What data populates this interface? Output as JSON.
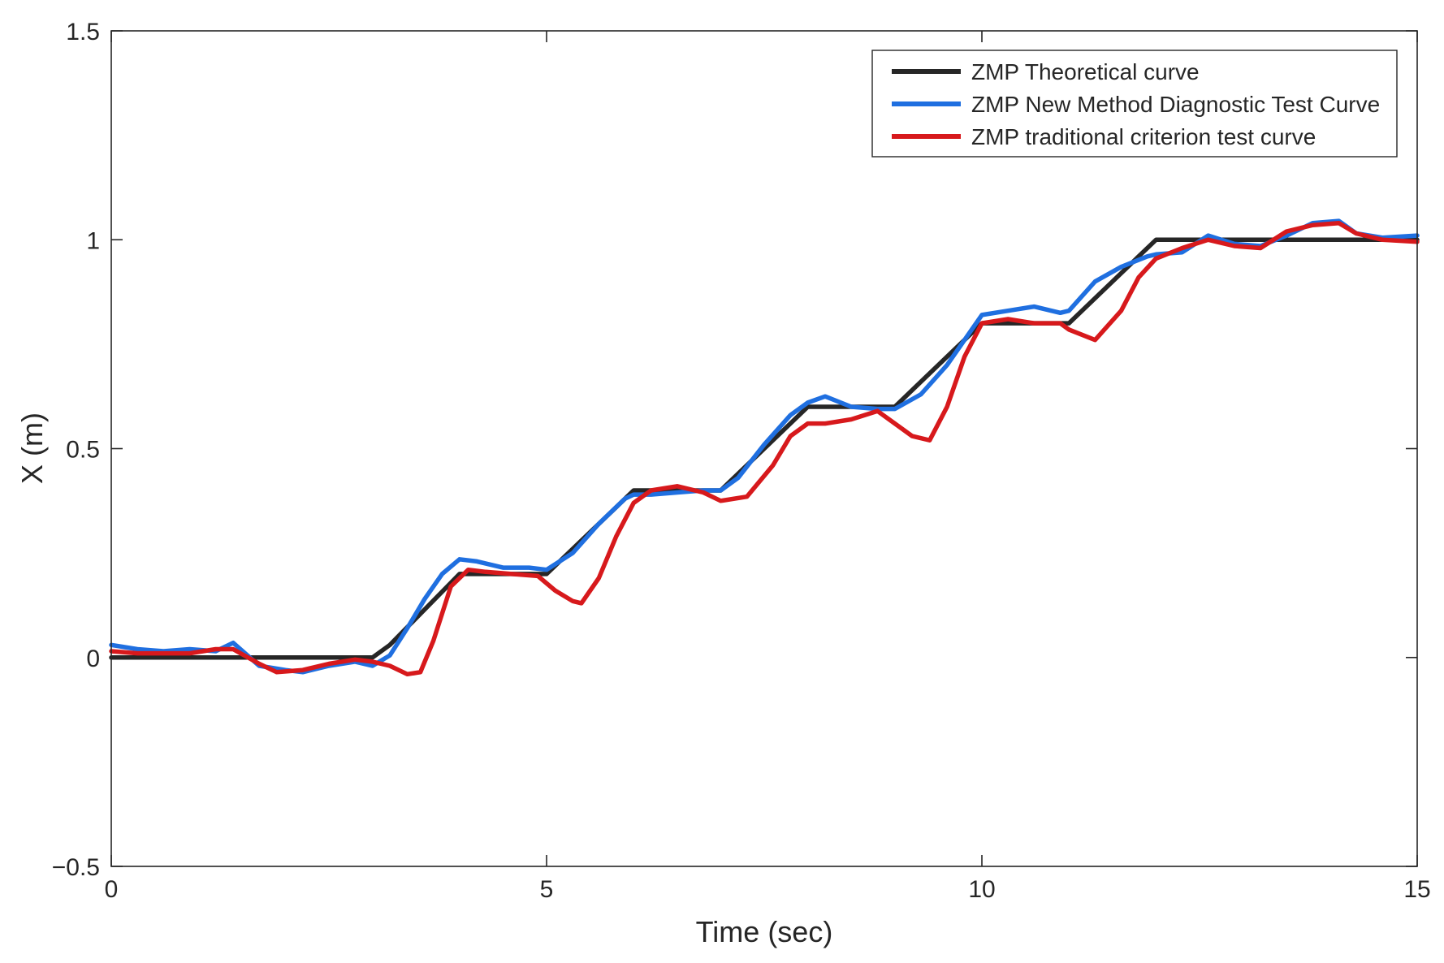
{
  "chart_data": {
    "type": "line",
    "title": "",
    "xlabel": "Time (sec)",
    "ylabel": "X (m)",
    "xlim": [
      0,
      15
    ],
    "ylim": [
      -0.5,
      1.5
    ],
    "grid": false,
    "legend_position": "top-right",
    "xticks": [
      0,
      5,
      10,
      15
    ],
    "xtick_labels": [
      "0",
      "5",
      "10",
      "15"
    ],
    "yticks": [
      -0.5,
      0,
      0.5,
      1,
      1.5
    ],
    "ytick_labels": [
      "−0.5",
      "0",
      "0.5",
      "1",
      "1.5"
    ],
    "series": [
      {
        "name": "ZMP Theoretical curve",
        "color": "#262626",
        "x": [
          0,
          3.0,
          3.2,
          4.0,
          5.0,
          6.0,
          7.0,
          8.0,
          9.0,
          10.0,
          11.0,
          12.0,
          15.0
        ],
        "y": [
          0,
          0,
          0.03,
          0.2,
          0.2,
          0.4,
          0.4,
          0.6,
          0.6,
          0.8,
          0.8,
          1.0,
          1.0
        ]
      },
      {
        "name": "ZMP New Method Diagnostic Test Curve",
        "color": "#1f6fe0",
        "x": [
          0,
          0.3,
          0.6,
          0.9,
          1.2,
          1.4,
          1.7,
          2.0,
          2.2,
          2.5,
          2.8,
          3.0,
          3.2,
          3.4,
          3.6,
          3.8,
          4.0,
          4.2,
          4.5,
          4.8,
          5.0,
          5.3,
          5.6,
          5.9,
          6.0,
          6.2,
          6.5,
          6.8,
          7.0,
          7.2,
          7.5,
          7.8,
          8.0,
          8.2,
          8.5,
          8.8,
          9.0,
          9.3,
          9.6,
          9.8,
          10.0,
          10.3,
          10.6,
          10.9,
          11.0,
          11.3,
          11.6,
          11.9,
          12.0,
          12.3,
          12.6,
          12.9,
          13.2,
          13.5,
          13.8,
          14.1,
          14.3,
          14.6,
          15.0
        ],
        "y": [
          0.03,
          0.02,
          0.015,
          0.02,
          0.015,
          0.035,
          -0.02,
          -0.03,
          -0.035,
          -0.02,
          -0.01,
          -0.02,
          0.005,
          0.07,
          0.14,
          0.2,
          0.235,
          0.23,
          0.215,
          0.215,
          0.21,
          0.25,
          0.32,
          0.38,
          0.39,
          0.39,
          0.395,
          0.4,
          0.4,
          0.43,
          0.51,
          0.58,
          0.61,
          0.625,
          0.6,
          0.595,
          0.595,
          0.63,
          0.7,
          0.76,
          0.82,
          0.83,
          0.84,
          0.825,
          0.83,
          0.9,
          0.935,
          0.96,
          0.965,
          0.97,
          1.01,
          0.99,
          0.985,
          1.01,
          1.04,
          1.045,
          1.015,
          1.005,
          1.01
        ]
      },
      {
        "name": "ZMP traditional criterion test curve",
        "color": "#d7191c",
        "x": [
          0,
          0.3,
          0.6,
          0.9,
          1.2,
          1.4,
          1.7,
          1.9,
          2.2,
          2.5,
          2.8,
          3.0,
          3.2,
          3.4,
          3.55,
          3.7,
          3.9,
          4.1,
          4.3,
          4.6,
          4.9,
          5.1,
          5.3,
          5.4,
          5.6,
          5.8,
          6.0,
          6.2,
          6.5,
          6.8,
          7.0,
          7.3,
          7.6,
          7.8,
          8.0,
          8.2,
          8.5,
          8.8,
          9.0,
          9.2,
          9.4,
          9.6,
          9.8,
          10.0,
          10.3,
          10.6,
          10.9,
          11.0,
          11.3,
          11.6,
          11.8,
          12.0,
          12.3,
          12.6,
          12.9,
          13.2,
          13.5,
          13.8,
          14.1,
          14.3,
          14.6,
          15.0
        ],
        "y": [
          0.015,
          0.01,
          0.01,
          0.01,
          0.02,
          0.02,
          -0.015,
          -0.035,
          -0.03,
          -0.015,
          -0.005,
          -0.01,
          -0.02,
          -0.04,
          -0.035,
          0.04,
          0.17,
          0.21,
          0.205,
          0.2,
          0.195,
          0.16,
          0.135,
          0.13,
          0.19,
          0.29,
          0.37,
          0.4,
          0.41,
          0.395,
          0.375,
          0.385,
          0.46,
          0.53,
          0.56,
          0.56,
          0.57,
          0.59,
          0.56,
          0.53,
          0.52,
          0.6,
          0.72,
          0.8,
          0.81,
          0.8,
          0.8,
          0.785,
          0.76,
          0.83,
          0.91,
          0.955,
          0.98,
          1.0,
          0.985,
          0.98,
          1.02,
          1.035,
          1.04,
          1.015,
          1.0,
          0.995
        ]
      }
    ]
  }
}
